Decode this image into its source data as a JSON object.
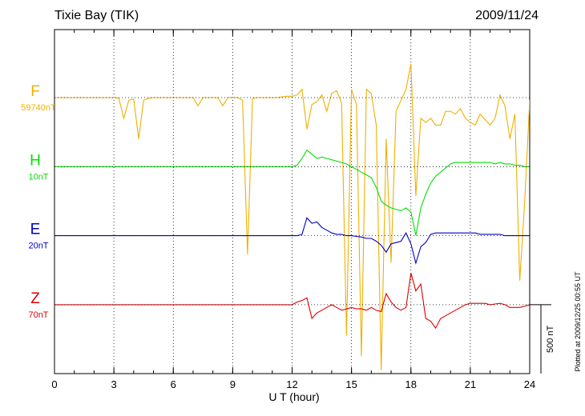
{
  "chart_data": {
    "type": "line",
    "title": "Tixie Bay (TIK)",
    "subtitle": "2009/11/24",
    "x_label": "U T (hour)",
    "note": "Plotted at 2009/12/25 00:55 UT",
    "xlim": [
      0,
      24
    ],
    "xticks": [
      0,
      3,
      6,
      9,
      12,
      15,
      18,
      21,
      24
    ],
    "grid": true,
    "scale_bar": {
      "value": 500,
      "label": "500 nT"
    },
    "x": [
      0,
      0.25,
      0.5,
      0.75,
      1,
      1.25,
      1.5,
      1.75,
      2,
      2.25,
      2.5,
      2.75,
      3,
      3.25,
      3.5,
      3.75,
      4,
      4.25,
      4.5,
      4.75,
      5,
      5.25,
      5.5,
      5.75,
      6,
      6.25,
      6.5,
      6.75,
      7,
      7.25,
      7.5,
      7.75,
      8,
      8.25,
      8.5,
      8.75,
      9,
      9.25,
      9.5,
      9.75,
      10,
      10.25,
      10.5,
      10.75,
      11,
      11.25,
      11.5,
      11.75,
      12,
      12.25,
      12.5,
      12.75,
      13,
      13.25,
      13.5,
      13.75,
      14,
      14.25,
      14.5,
      14.75,
      15,
      15.25,
      15.5,
      15.75,
      16,
      16.25,
      16.5,
      16.75,
      17,
      17.25,
      17.5,
      17.75,
      18,
      18.25,
      18.5,
      18.75,
      19,
      19.25,
      19.5,
      19.75,
      20,
      20.25,
      20.5,
      20.75,
      21,
      21.25,
      21.5,
      21.75,
      22,
      22.25,
      22.5,
      22.75,
      23,
      23.25,
      23.5,
      23.75,
      24
    ],
    "series": [
      {
        "name": "F",
        "color": "#f0b000",
        "baseline": 59740,
        "baseline_label": "59740nT",
        "values": [
          59740,
          59740,
          59740,
          59740,
          59740,
          59740,
          59740,
          59740,
          59740,
          59740,
          59740,
          59740,
          59740,
          59735,
          59590,
          59720,
          59730,
          59440,
          59720,
          59735,
          59740,
          59740,
          59740,
          59740,
          59740,
          59740,
          59740,
          59740,
          59740,
          59680,
          59740,
          59740,
          59740,
          59740,
          59680,
          59740,
          59740,
          59740,
          59720,
          58600,
          59735,
          59740,
          59740,
          59740,
          59740,
          59740,
          59745,
          59750,
          59750,
          59760,
          59800,
          59510,
          59690,
          59710,
          59760,
          59640,
          59770,
          59790,
          59700,
          58010,
          59800,
          59690,
          57860,
          59800,
          59770,
          59540,
          57760,
          59440,
          58540,
          59640,
          59720,
          59800,
          59985,
          59025,
          59590,
          59560,
          59590,
          59540,
          59540,
          59640,
          59640,
          59620,
          59660,
          59590,
          59560,
          59540,
          59620,
          59580,
          59540,
          59590,
          59760,
          59680,
          59440,
          59620,
          58410,
          58990,
          59720
        ]
      },
      {
        "name": "H",
        "color": "#00e000",
        "baseline": 10,
        "baseline_label": "10nT",
        "values": [
          10,
          10,
          10,
          10,
          10,
          10,
          10,
          10,
          10,
          10,
          10,
          10,
          10,
          10,
          10,
          10,
          10,
          10,
          10,
          10,
          10,
          10,
          10,
          10,
          10,
          10,
          10,
          10,
          10,
          10,
          10,
          10,
          10,
          10,
          10,
          10,
          10,
          10,
          10,
          10,
          10,
          10,
          10,
          10,
          10,
          10,
          10,
          10,
          10,
          20,
          70,
          130,
          100,
          70,
          80,
          70,
          60,
          50,
          40,
          30,
          10,
          -10,
          -30,
          -50,
          -70,
          -140,
          -240,
          -270,
          -290,
          -300,
          -310,
          -290,
          -320,
          -490,
          -290,
          -190,
          -110,
          -60,
          -30,
          0,
          30,
          40,
          40,
          40,
          40,
          40,
          40,
          40,
          40,
          30,
          40,
          30,
          30,
          20,
          20,
          10,
          10
        ]
      },
      {
        "name": "E",
        "color": "#0000cc",
        "baseline": 20,
        "baseline_label": "20nT",
        "values": [
          20,
          20,
          20,
          20,
          20,
          20,
          20,
          20,
          20,
          20,
          20,
          20,
          20,
          20,
          20,
          20,
          20,
          20,
          20,
          20,
          20,
          20,
          20,
          20,
          20,
          20,
          20,
          20,
          20,
          20,
          20,
          20,
          20,
          20,
          20,
          20,
          20,
          20,
          20,
          20,
          20,
          20,
          20,
          20,
          20,
          20,
          20,
          20,
          20,
          20,
          30,
          150,
          110,
          120,
          80,
          60,
          40,
          30,
          30,
          20,
          20,
          15,
          10,
          0,
          0,
          -20,
          -50,
          -100,
          -40,
          -30,
          -20,
          40,
          -40,
          -180,
          -60,
          -30,
          30,
          40,
          40,
          40,
          40,
          40,
          40,
          40,
          40,
          40,
          30,
          30,
          30,
          30,
          30,
          20,
          20,
          20,
          20,
          20,
          20
        ]
      },
      {
        "name": "Z",
        "color": "#dd0000",
        "baseline": 70,
        "baseline_label": "70nT",
        "values": [
          70,
          70,
          70,
          70,
          70,
          70,
          70,
          70,
          70,
          70,
          70,
          70,
          70,
          70,
          70,
          70,
          70,
          70,
          70,
          70,
          70,
          70,
          70,
          70,
          70,
          70,
          70,
          70,
          70,
          70,
          70,
          70,
          70,
          70,
          70,
          70,
          70,
          70,
          70,
          70,
          70,
          70,
          70,
          70,
          70,
          70,
          70,
          70,
          70,
          90,
          100,
          120,
          -30,
          10,
          30,
          50,
          70,
          50,
          30,
          40,
          50,
          40,
          40,
          30,
          50,
          30,
          20,
          150,
          90,
          50,
          30,
          50,
          300,
          170,
          220,
          -30,
          -50,
          -100,
          -30,
          -10,
          10,
          30,
          50,
          70,
          80,
          80,
          80,
          80,
          70,
          75,
          80,
          70,
          50,
          50,
          50,
          60,
          70
        ]
      }
    ]
  }
}
